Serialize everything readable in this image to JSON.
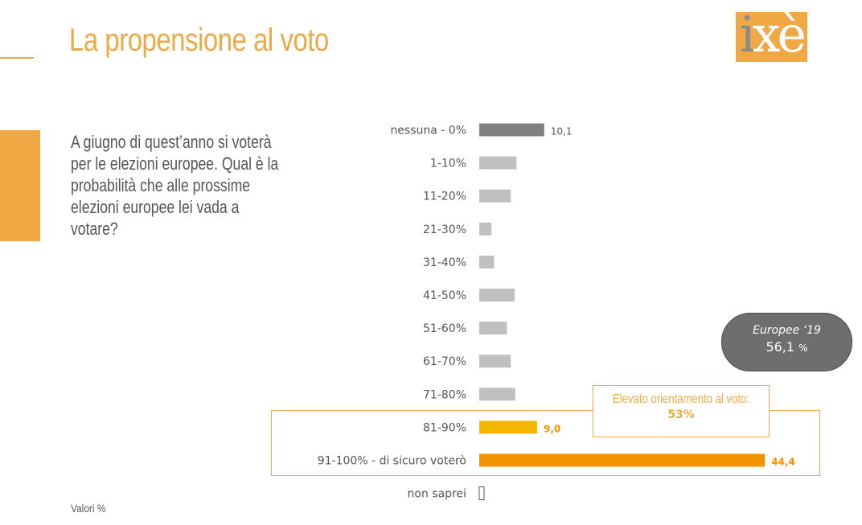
{
  "header": {
    "title": "La propensione al voto",
    "logo": {
      "i": "i",
      "rest": "xè"
    }
  },
  "question": "A giugno di quest’anno si voterà per le elezioni europee. Qual è la probabilità che alle prossime elezioni europee lei vada a votare?",
  "footnote": "Valori %",
  "callout": {
    "line1": "Elevato orientamento al voto:",
    "line2": "53%"
  },
  "bubble": {
    "line1": "Europee ‘19",
    "value": "56,1",
    "unit": "%"
  },
  "colors": {
    "accent": "#f0a845",
    "dark_bar": "#808080",
    "light_bar": "#c0c0c0",
    "mid_orange": "#f5b800",
    "strong_orange": "#f39200"
  },
  "chart_data": {
    "type": "bar",
    "orientation": "horizontal",
    "categories": [
      "nessuna - 0%",
      "1-10%",
      "11-20%",
      "21-30%",
      "31-40%",
      "41-50%",
      "51-60%",
      "61-70%",
      "71-80%",
      "81-90%",
      "91-100% - di sicuro voterò",
      "non saprei"
    ],
    "values": [
      10.1,
      5.8,
      4.9,
      1.9,
      2.3,
      5.5,
      4.3,
      4.9,
      5.6,
      9.0,
      44.4,
      0.2
    ],
    "labels": [
      "10,1",
      "",
      "",
      "",
      "",
      "",
      "",
      "",
      "",
      "9,0",
      "44,4",
      ""
    ],
    "bar_colors": [
      "#808080",
      "#c0c0c0",
      "#c0c0c0",
      "#c0c0c0",
      "#c0c0c0",
      "#c0c0c0",
      "#c0c0c0",
      "#c0c0c0",
      "#c0c0c0",
      "#f5b800",
      "#f39200",
      "#ffffff"
    ],
    "label_colors": [
      "#555555",
      "",
      "",
      "",
      "",
      "",
      "",
      "",
      "",
      "#f39200",
      "#f39200",
      ""
    ],
    "xlim": [
      0,
      45
    ],
    "grid": false,
    "legend": "none"
  }
}
